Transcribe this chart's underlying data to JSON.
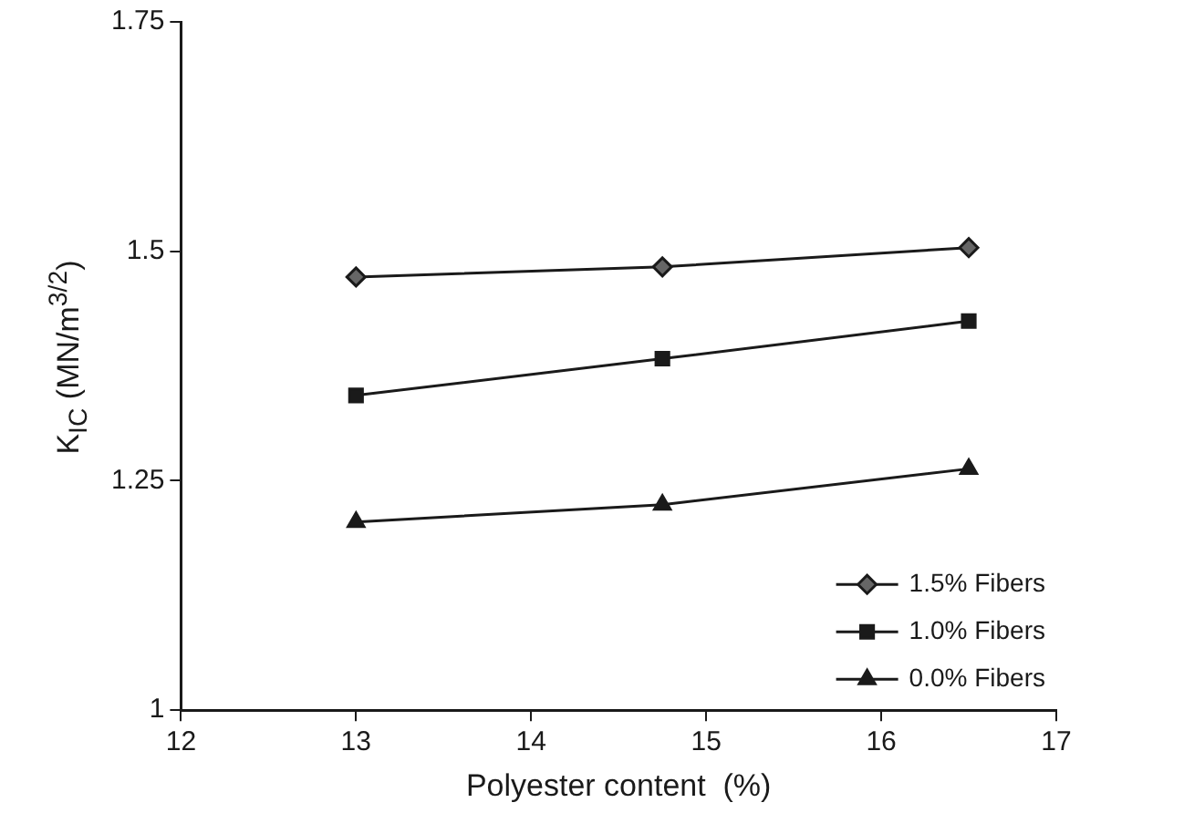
{
  "chart_data": {
    "type": "line",
    "xlabel": "Polyester content  (%)",
    "ylabel": "K$_{IC}$ (MN/m$^{3/2}$)",
    "xlim": [
      12,
      17
    ],
    "xticks": [
      12,
      13,
      14,
      15,
      16,
      17
    ],
    "ylim": [
      1,
      1.75
    ],
    "yticks": [
      1,
      1.25,
      1.5,
      1.75
    ],
    "grid": false,
    "legend": "bottom right",
    "line_style": "solid",
    "series": [
      {
        "name": "1.5% Fibers",
        "color": "#1a1a1a",
        "marker": "diamond",
        "x": [
          13,
          14.75,
          16.5
        ],
        "values": [
          1.472,
          1.483,
          1.504
        ]
      },
      {
        "name": "1.0% Fibers",
        "color": "#1a1a1a",
        "marker": "square",
        "x": [
          13,
          14.75,
          16.5
        ],
        "values": [
          1.343,
          1.383,
          1.424
        ]
      },
      {
        "name": "0.0% Fibers",
        "color": "#1a1a1a",
        "marker": "triangle",
        "x": [
          13,
          14.75,
          16.5
        ],
        "values": [
          1.205,
          1.224,
          1.263
        ]
      }
    ]
  }
}
